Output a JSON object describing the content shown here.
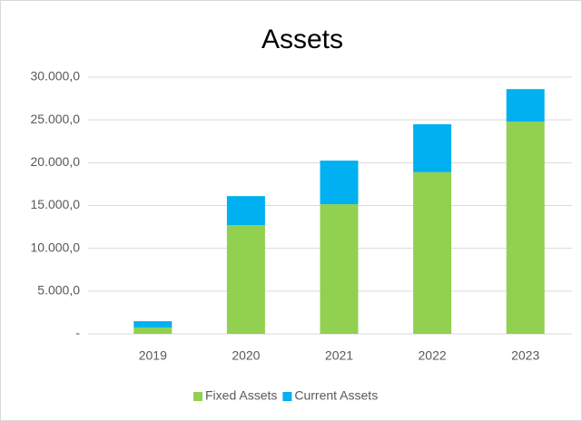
{
  "chart_data": {
    "type": "stacked_bar",
    "title": "Assets",
    "categories": [
      "2019",
      "2020",
      "2021",
      "2022",
      "2023"
    ],
    "series": [
      {
        "name": "Fixed Assets",
        "color": "#92d050",
        "values": [
          750,
          12700,
          15150,
          18900,
          24800
        ]
      },
      {
        "name": "Current Assets",
        "color": "#00b0f0",
        "values": [
          730,
          3400,
          5100,
          5600,
          3800
        ]
      }
    ],
    "ylim": [
      0,
      30000
    ],
    "yticks": [
      {
        "value": 0,
        "label": "-"
      },
      {
        "value": 5000,
        "label": "5.000,0"
      },
      {
        "value": 10000,
        "label": "10.000,0"
      },
      {
        "value": 15000,
        "label": "15.000,0"
      },
      {
        "value": 20000,
        "label": "20.000,0"
      },
      {
        "value": 25000,
        "label": "25.000,0"
      },
      {
        "value": 30000,
        "label": "30.000,0"
      }
    ],
    "grid": true,
    "legend": "bottom"
  }
}
